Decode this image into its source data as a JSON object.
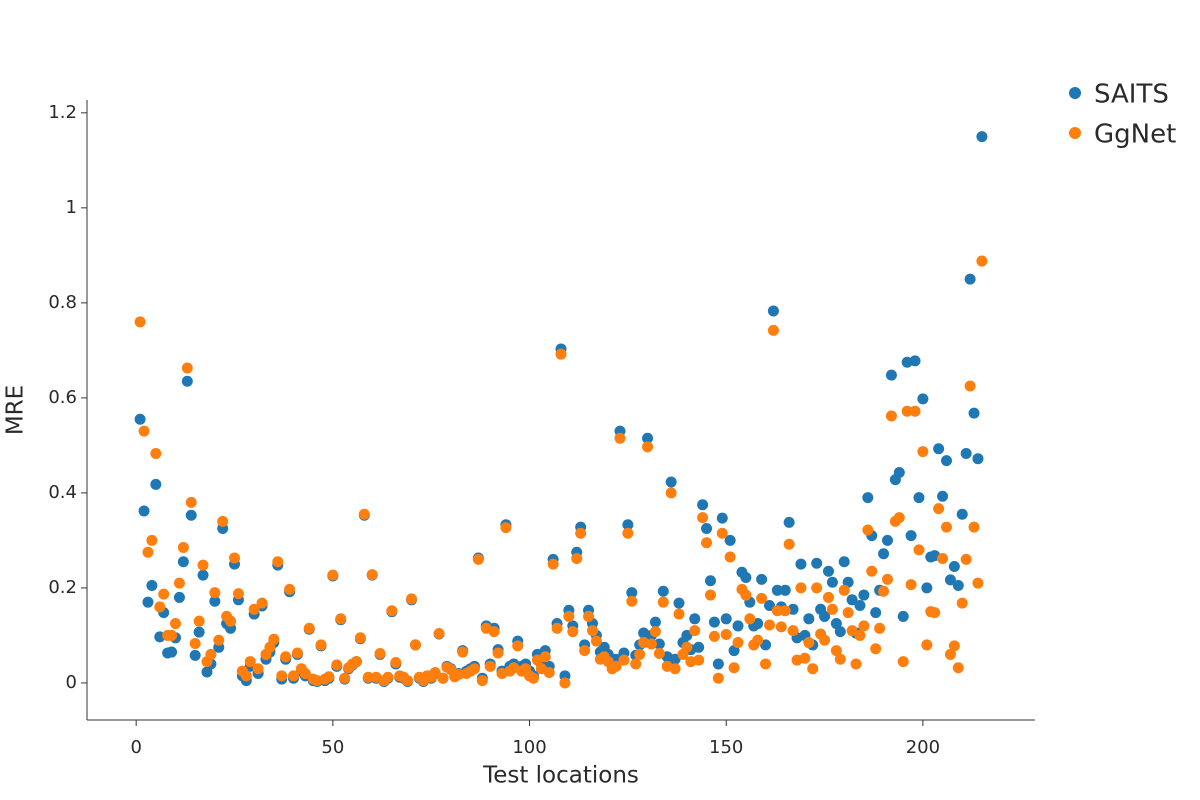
{
  "chart_data": {
    "type": "scatter",
    "x_label": "Test locations",
    "y_label": "MRE",
    "x": [
      1,
      2,
      3,
      4,
      5,
      6,
      7,
      8,
      9,
      10,
      11,
      12,
      13,
      14,
      15,
      16,
      17,
      18,
      19,
      20,
      21,
      22,
      23,
      24,
      25,
      26,
      27,
      28,
      29,
      30,
      31,
      32,
      33,
      34,
      35,
      36,
      37,
      38,
      39,
      40,
      41,
      42,
      43,
      44,
      45,
      46,
      47,
      48,
      49,
      50,
      51,
      52,
      53,
      54,
      55,
      56,
      57,
      58,
      59,
      60,
      61,
      62,
      63,
      64,
      65,
      66,
      67,
      68,
      69,
      70,
      71,
      72,
      73,
      74,
      75,
      76,
      77,
      78,
      79,
      80,
      81,
      82,
      83,
      84,
      85,
      86,
      87,
      88,
      89,
      90,
      91,
      92,
      93,
      94,
      95,
      96,
      97,
      98,
      99,
      100,
      101,
      102,
      103,
      104,
      105,
      106,
      107,
      108,
      109,
      110,
      111,
      112,
      113,
      114,
      115,
      116,
      117,
      118,
      119,
      120,
      121,
      122,
      123,
      124,
      125,
      126,
      127,
      128,
      129,
      130,
      131,
      132,
      133,
      134,
      135,
      136,
      137,
      138,
      139,
      140,
      141,
      142,
      143,
      144,
      145,
      146,
      147,
      148,
      149,
      150,
      151,
      152,
      153,
      154,
      155,
      156,
      157,
      158,
      159,
      160,
      161,
      162,
      163,
      164,
      165,
      166,
      167,
      168,
      169,
      170,
      171,
      172,
      173,
      174,
      175,
      176,
      177,
      178,
      179,
      180,
      181,
      182,
      183,
      184,
      185,
      186,
      187,
      188,
      189,
      190,
      191,
      192,
      193,
      194,
      195,
      196,
      197,
      198,
      199,
      200,
      201,
      202,
      203,
      204,
      205,
      206,
      207,
      208,
      209,
      210,
      211,
      212,
      213,
      214,
      215
    ],
    "series": [
      {
        "name": "SAITS",
        "color": "#1f77b4",
        "values": [
          0.555,
          0.362,
          0.17,
          0.205,
          0.418,
          0.097,
          0.148,
          0.063,
          0.065,
          0.095,
          0.18,
          0.255,
          0.635,
          0.353,
          0.058,
          0.107,
          0.227,
          0.023,
          0.04,
          0.172,
          0.075,
          0.325,
          0.125,
          0.115,
          0.25,
          0.175,
          0.015,
          0.005,
          0.035,
          0.145,
          0.02,
          0.162,
          0.05,
          0.065,
          0.085,
          0.248,
          0.008,
          0.05,
          0.192,
          0.01,
          0.06,
          0.025,
          0.015,
          0.113,
          0.005,
          0.003,
          0.078,
          0.005,
          0.01,
          0.225,
          0.035,
          0.133,
          0.008,
          0.03,
          0.038,
          0.045,
          0.093,
          0.353,
          0.01,
          0.227,
          0.01,
          0.06,
          0.003,
          0.01,
          0.15,
          0.04,
          0.012,
          0.01,
          0.003,
          0.175,
          0.08,
          0.01,
          0.003,
          0.015,
          0.01,
          0.02,
          0.103,
          0.01,
          0.035,
          0.03,
          0.015,
          0.02,
          0.068,
          0.025,
          0.03,
          0.035,
          0.263,
          0.01,
          0.12,
          0.04,
          0.115,
          0.07,
          0.025,
          0.333,
          0.035,
          0.04,
          0.088,
          0.035,
          0.04,
          0.025,
          0.015,
          0.06,
          0.04,
          0.068,
          0.035,
          0.26,
          0.125,
          0.703,
          0.015,
          0.153,
          0.12,
          0.275,
          0.328,
          0.08,
          0.153,
          0.125,
          0.1,
          0.065,
          0.075,
          0.06,
          0.045,
          0.05,
          0.53,
          0.063,
          0.333,
          0.19,
          0.058,
          0.08,
          0.105,
          0.515,
          0.1,
          0.128,
          0.082,
          0.193,
          0.055,
          0.423,
          0.05,
          0.168,
          0.085,
          0.1,
          0.07,
          0.135,
          0.075,
          0.375,
          0.325,
          0.215,
          0.128,
          0.04,
          0.347,
          0.135,
          0.3,
          0.068,
          0.12,
          0.233,
          0.222,
          0.17,
          0.12,
          0.125,
          0.218,
          0.08,
          0.163,
          0.783,
          0.195,
          0.16,
          0.195,
          0.338,
          0.155,
          0.095,
          0.25,
          0.1,
          0.135,
          0.08,
          0.252,
          0.155,
          0.14,
          0.235,
          0.212,
          0.125,
          0.108,
          0.255,
          0.212,
          0.175,
          0.105,
          0.163,
          0.185,
          0.39,
          0.31,
          0.148,
          0.195,
          0.272,
          0.3,
          0.648,
          0.428,
          0.443,
          0.14,
          0.675,
          0.31,
          0.678,
          0.39,
          0.598,
          0.2,
          0.265,
          0.268,
          0.493,
          0.393,
          0.468,
          0.217,
          0.245,
          0.205,
          0.355,
          0.483,
          0.85,
          0.568,
          0.472,
          1.15
        ]
      },
      {
        "name": "GgNet",
        "color": "#ff7f0e",
        "values": [
          0.76,
          0.53,
          0.275,
          0.3,
          0.483,
          0.16,
          0.187,
          0.1,
          0.1,
          0.125,
          0.21,
          0.285,
          0.663,
          0.38,
          0.083,
          0.13,
          0.248,
          0.045,
          0.06,
          0.19,
          0.09,
          0.34,
          0.14,
          0.13,
          0.263,
          0.188,
          0.025,
          0.015,
          0.045,
          0.155,
          0.03,
          0.168,
          0.06,
          0.075,
          0.092,
          0.255,
          0.015,
          0.055,
          0.197,
          0.015,
          0.063,
          0.03,
          0.02,
          0.115,
          0.008,
          0.005,
          0.08,
          0.008,
          0.013,
          0.227,
          0.038,
          0.135,
          0.01,
          0.032,
          0.04,
          0.045,
          0.095,
          0.355,
          0.012,
          0.228,
          0.012,
          0.062,
          0.005,
          0.012,
          0.152,
          0.043,
          0.015,
          0.012,
          0.005,
          0.177,
          0.08,
          0.012,
          0.005,
          0.015,
          0.012,
          0.022,
          0.104,
          0.01,
          0.033,
          0.028,
          0.013,
          0.018,
          0.065,
          0.02,
          0.025,
          0.03,
          0.26,
          0.005,
          0.115,
          0.035,
          0.108,
          0.063,
          0.02,
          0.327,
          0.025,
          0.032,
          0.078,
          0.025,
          0.03,
          0.015,
          0.01,
          0.048,
          0.03,
          0.055,
          0.022,
          0.25,
          0.115,
          0.692,
          0.0,
          0.14,
          0.108,
          0.262,
          0.315,
          0.068,
          0.14,
          0.11,
          0.088,
          0.05,
          0.055,
          0.045,
          0.03,
          0.035,
          0.515,
          0.048,
          0.315,
          0.172,
          0.04,
          0.06,
          0.085,
          0.497,
          0.082,
          0.108,
          0.062,
          0.17,
          0.035,
          0.4,
          0.03,
          0.145,
          0.06,
          0.075,
          0.045,
          0.11,
          0.048,
          0.348,
          0.295,
          0.185,
          0.098,
          0.01,
          0.315,
          0.102,
          0.265,
          0.032,
          0.085,
          0.197,
          0.185,
          0.135,
          0.08,
          0.09,
          0.178,
          0.04,
          0.122,
          0.742,
          0.152,
          0.118,
          0.152,
          0.292,
          0.11,
          0.048,
          0.2,
          0.052,
          0.085,
          0.03,
          0.2,
          0.103,
          0.09,
          0.18,
          0.155,
          0.068,
          0.05,
          0.195,
          0.148,
          0.11,
          0.04,
          0.1,
          0.12,
          0.322,
          0.235,
          0.072,
          0.115,
          0.193,
          0.218,
          0.562,
          0.34,
          0.348,
          0.045,
          0.572,
          0.207,
          0.572,
          0.28,
          0.487,
          0.08,
          0.15,
          0.148,
          0.367,
          0.262,
          0.328,
          0.06,
          0.078,
          0.032,
          0.168,
          0.26,
          0.625,
          0.328,
          0.21,
          0.888
        ]
      }
    ],
    "xlim": [
      -12.5,
      228.5
    ],
    "ylim": [
      -0.078,
      1.227
    ],
    "xticks": [
      0,
      50,
      100,
      150,
      200
    ],
    "yticks": [
      0,
      0.2,
      0.4,
      0.6,
      0.8,
      1,
      1.2
    ],
    "grid": false
  }
}
